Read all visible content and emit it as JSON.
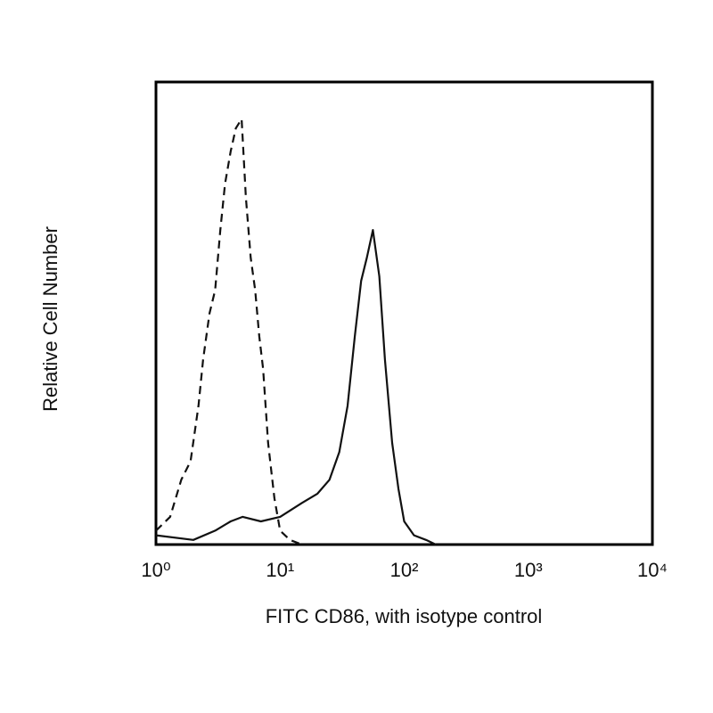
{
  "chart_data": {
    "type": "line",
    "xlabel": "FITC CD86, with isotype control",
    "ylabel": "Relative Cell Number",
    "xscale": "log",
    "xlim": [
      1,
      10000
    ],
    "ylim": [
      0,
      100
    ],
    "xticks": [
      {
        "value": 1,
        "label": "10⁰"
      },
      {
        "value": 10,
        "label": "10¹"
      },
      {
        "value": 100,
        "label": "10²"
      },
      {
        "value": 1000,
        "label": "10³"
      },
      {
        "value": 10000,
        "label": "10⁴"
      }
    ],
    "series": [
      {
        "color": "#111111",
        "style": "dashed",
        "x": [
          1.0,
          1.3,
          1.6,
          1.9,
          2.2,
          2.4,
          2.7,
          3.0,
          3.3,
          3.6,
          4.0,
          4.4,
          4.9,
          5.3,
          5.8,
          6.3,
          6.8,
          7.3,
          8.0,
          9.0,
          10,
          12,
          15
        ],
        "values": [
          3,
          6,
          14,
          18,
          30,
          40,
          50,
          55,
          68,
          78,
          85,
          90,
          92,
          75,
          62,
          55,
          45,
          38,
          22,
          10,
          3,
          1,
          0
        ]
      },
      {
        "color": "#111111",
        "style": "solid",
        "x": [
          1,
          2,
          3,
          4,
          5,
          7,
          10,
          15,
          20,
          25,
          30,
          35,
          40,
          45,
          50,
          56,
          63,
          70,
          80,
          90,
          100,
          120,
          150,
          180
        ],
        "values": [
          2,
          1,
          3,
          5,
          6,
          5,
          6,
          9,
          11,
          14,
          20,
          30,
          45,
          57,
          62,
          68,
          58,
          40,
          22,
          12,
          5,
          2,
          1,
          0
        ]
      }
    ]
  }
}
